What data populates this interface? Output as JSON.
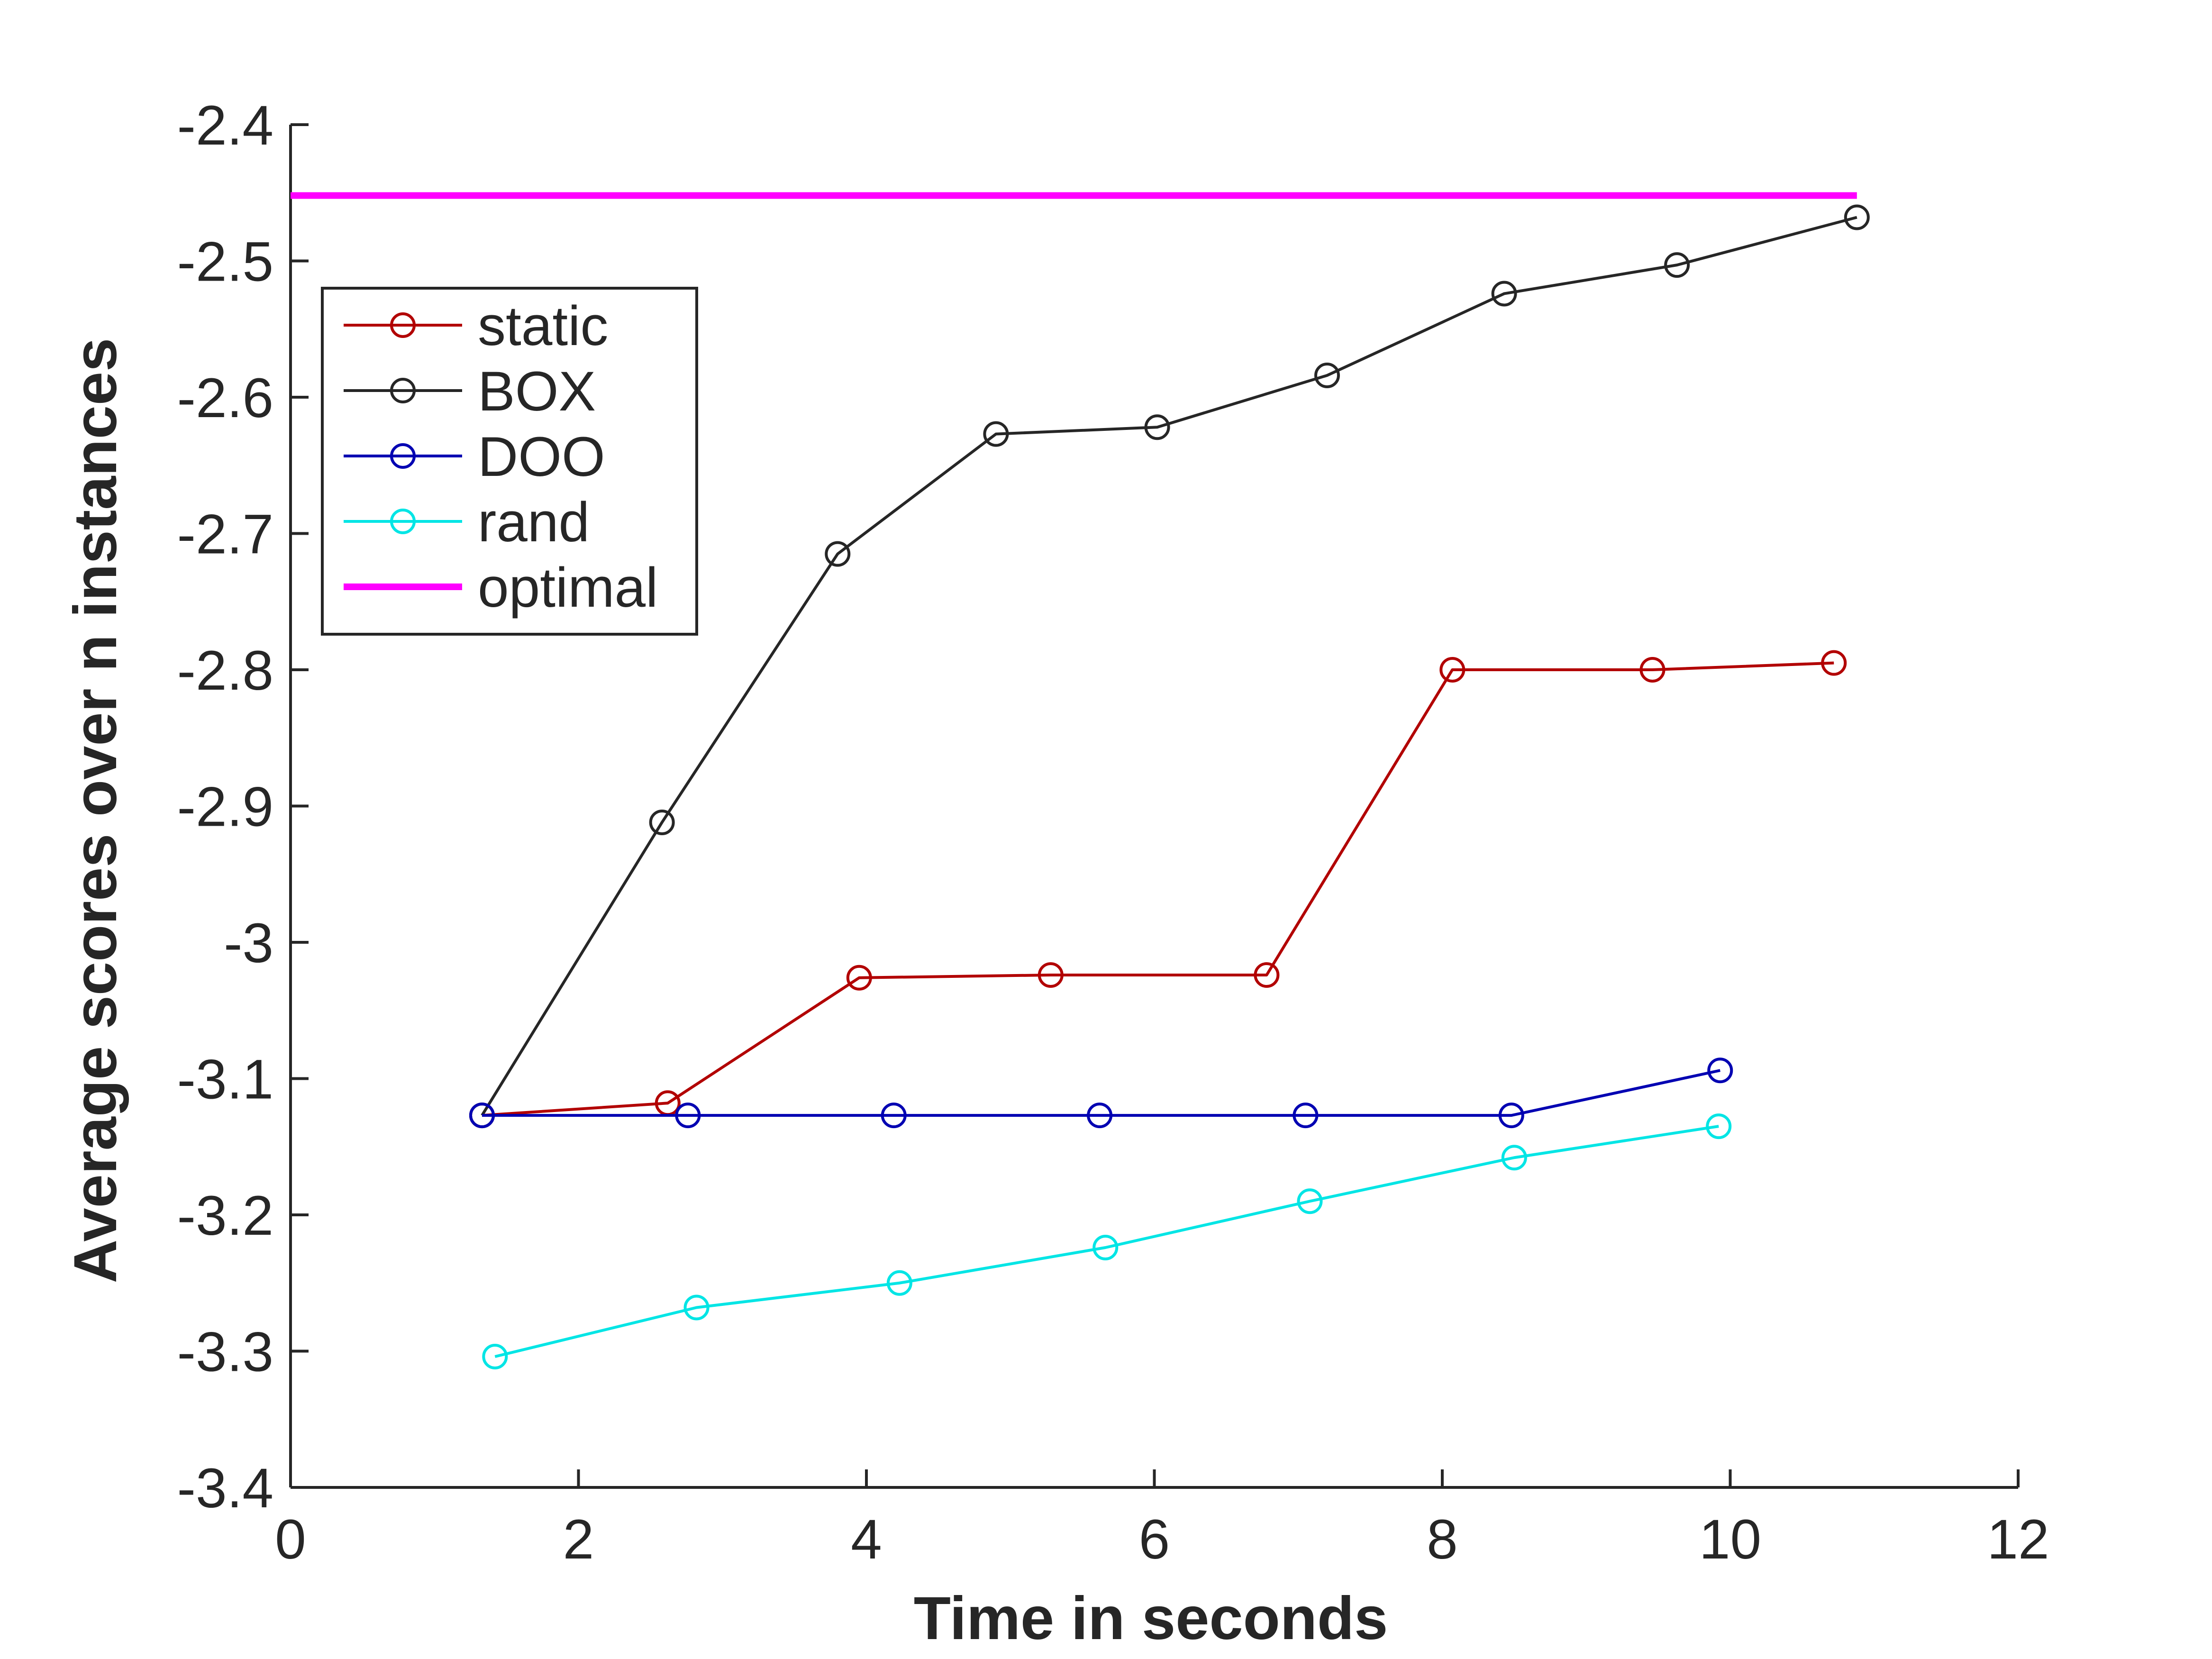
{
  "chart_data": {
    "type": "line",
    "title": "",
    "xlabel": "Time in seconds",
    "ylabel": "Average scores over n instances",
    "xlim": [
      0,
      12
    ],
    "ylim": [
      -3.4,
      -2.4
    ],
    "xticks": [
      0,
      2,
      4,
      6,
      8,
      10,
      12
    ],
    "yticks": [
      -3.4,
      -3.3,
      -3.2,
      -3.1,
      -3,
      -2.9,
      -2.8,
      -2.7,
      -2.6,
      -2.5,
      -2.4
    ],
    "xtick_labels": [
      "0",
      "2",
      "4",
      "6",
      "8",
      "10",
      "12"
    ],
    "ytick_labels": [
      "-3.4",
      "-3.3",
      "-3.2",
      "-3.1",
      "-3",
      "-2.9",
      "-2.8",
      "-2.7",
      "-2.6",
      "-2.5",
      "-2.4"
    ],
    "grid": false,
    "legend_position": "top-left",
    "series": [
      {
        "name": "static",
        "color": "#b20000",
        "marker": "circle",
        "x": [
          1.33,
          2.62,
          3.95,
          5.28,
          6.78,
          8.07,
          9.46,
          10.72
        ],
        "y": [
          -3.127,
          -3.118,
          -3.026,
          -3.024,
          -3.024,
          -2.8,
          -2.8,
          -2.795
        ]
      },
      {
        "name": "BOX",
        "color": "#262626",
        "marker": "circle",
        "x": [
          1.33,
          2.58,
          3.8,
          4.9,
          6.02,
          7.2,
          8.43,
          9.63,
          10.88
        ],
        "y": [
          -3.127,
          -2.912,
          -2.715,
          -2.627,
          -2.622,
          -2.584,
          -2.524,
          -2.503,
          -2.468
        ]
      },
      {
        "name": "DOO",
        "color": "#0000b2",
        "marker": "circle",
        "x": [
          1.33,
          2.76,
          4.19,
          5.62,
          7.05,
          8.48,
          9.93
        ],
        "y": [
          -3.127,
          -3.127,
          -3.127,
          -3.127,
          -3.127,
          -3.127,
          -3.094
        ]
      },
      {
        "name": "rand",
        "color": "#00e5e5",
        "marker": "circle",
        "x": [
          1.42,
          2.82,
          4.23,
          5.66,
          7.08,
          8.5,
          9.92
        ],
        "y": [
          -3.304,
          -3.268,
          -3.25,
          -3.224,
          -3.19,
          -3.158,
          -3.135
        ]
      },
      {
        "name": "optimal",
        "color": "#ff00ff",
        "marker": "none",
        "x": [
          0.0,
          10.88
        ],
        "y": [
          -2.452,
          -2.452
        ]
      }
    ]
  }
}
